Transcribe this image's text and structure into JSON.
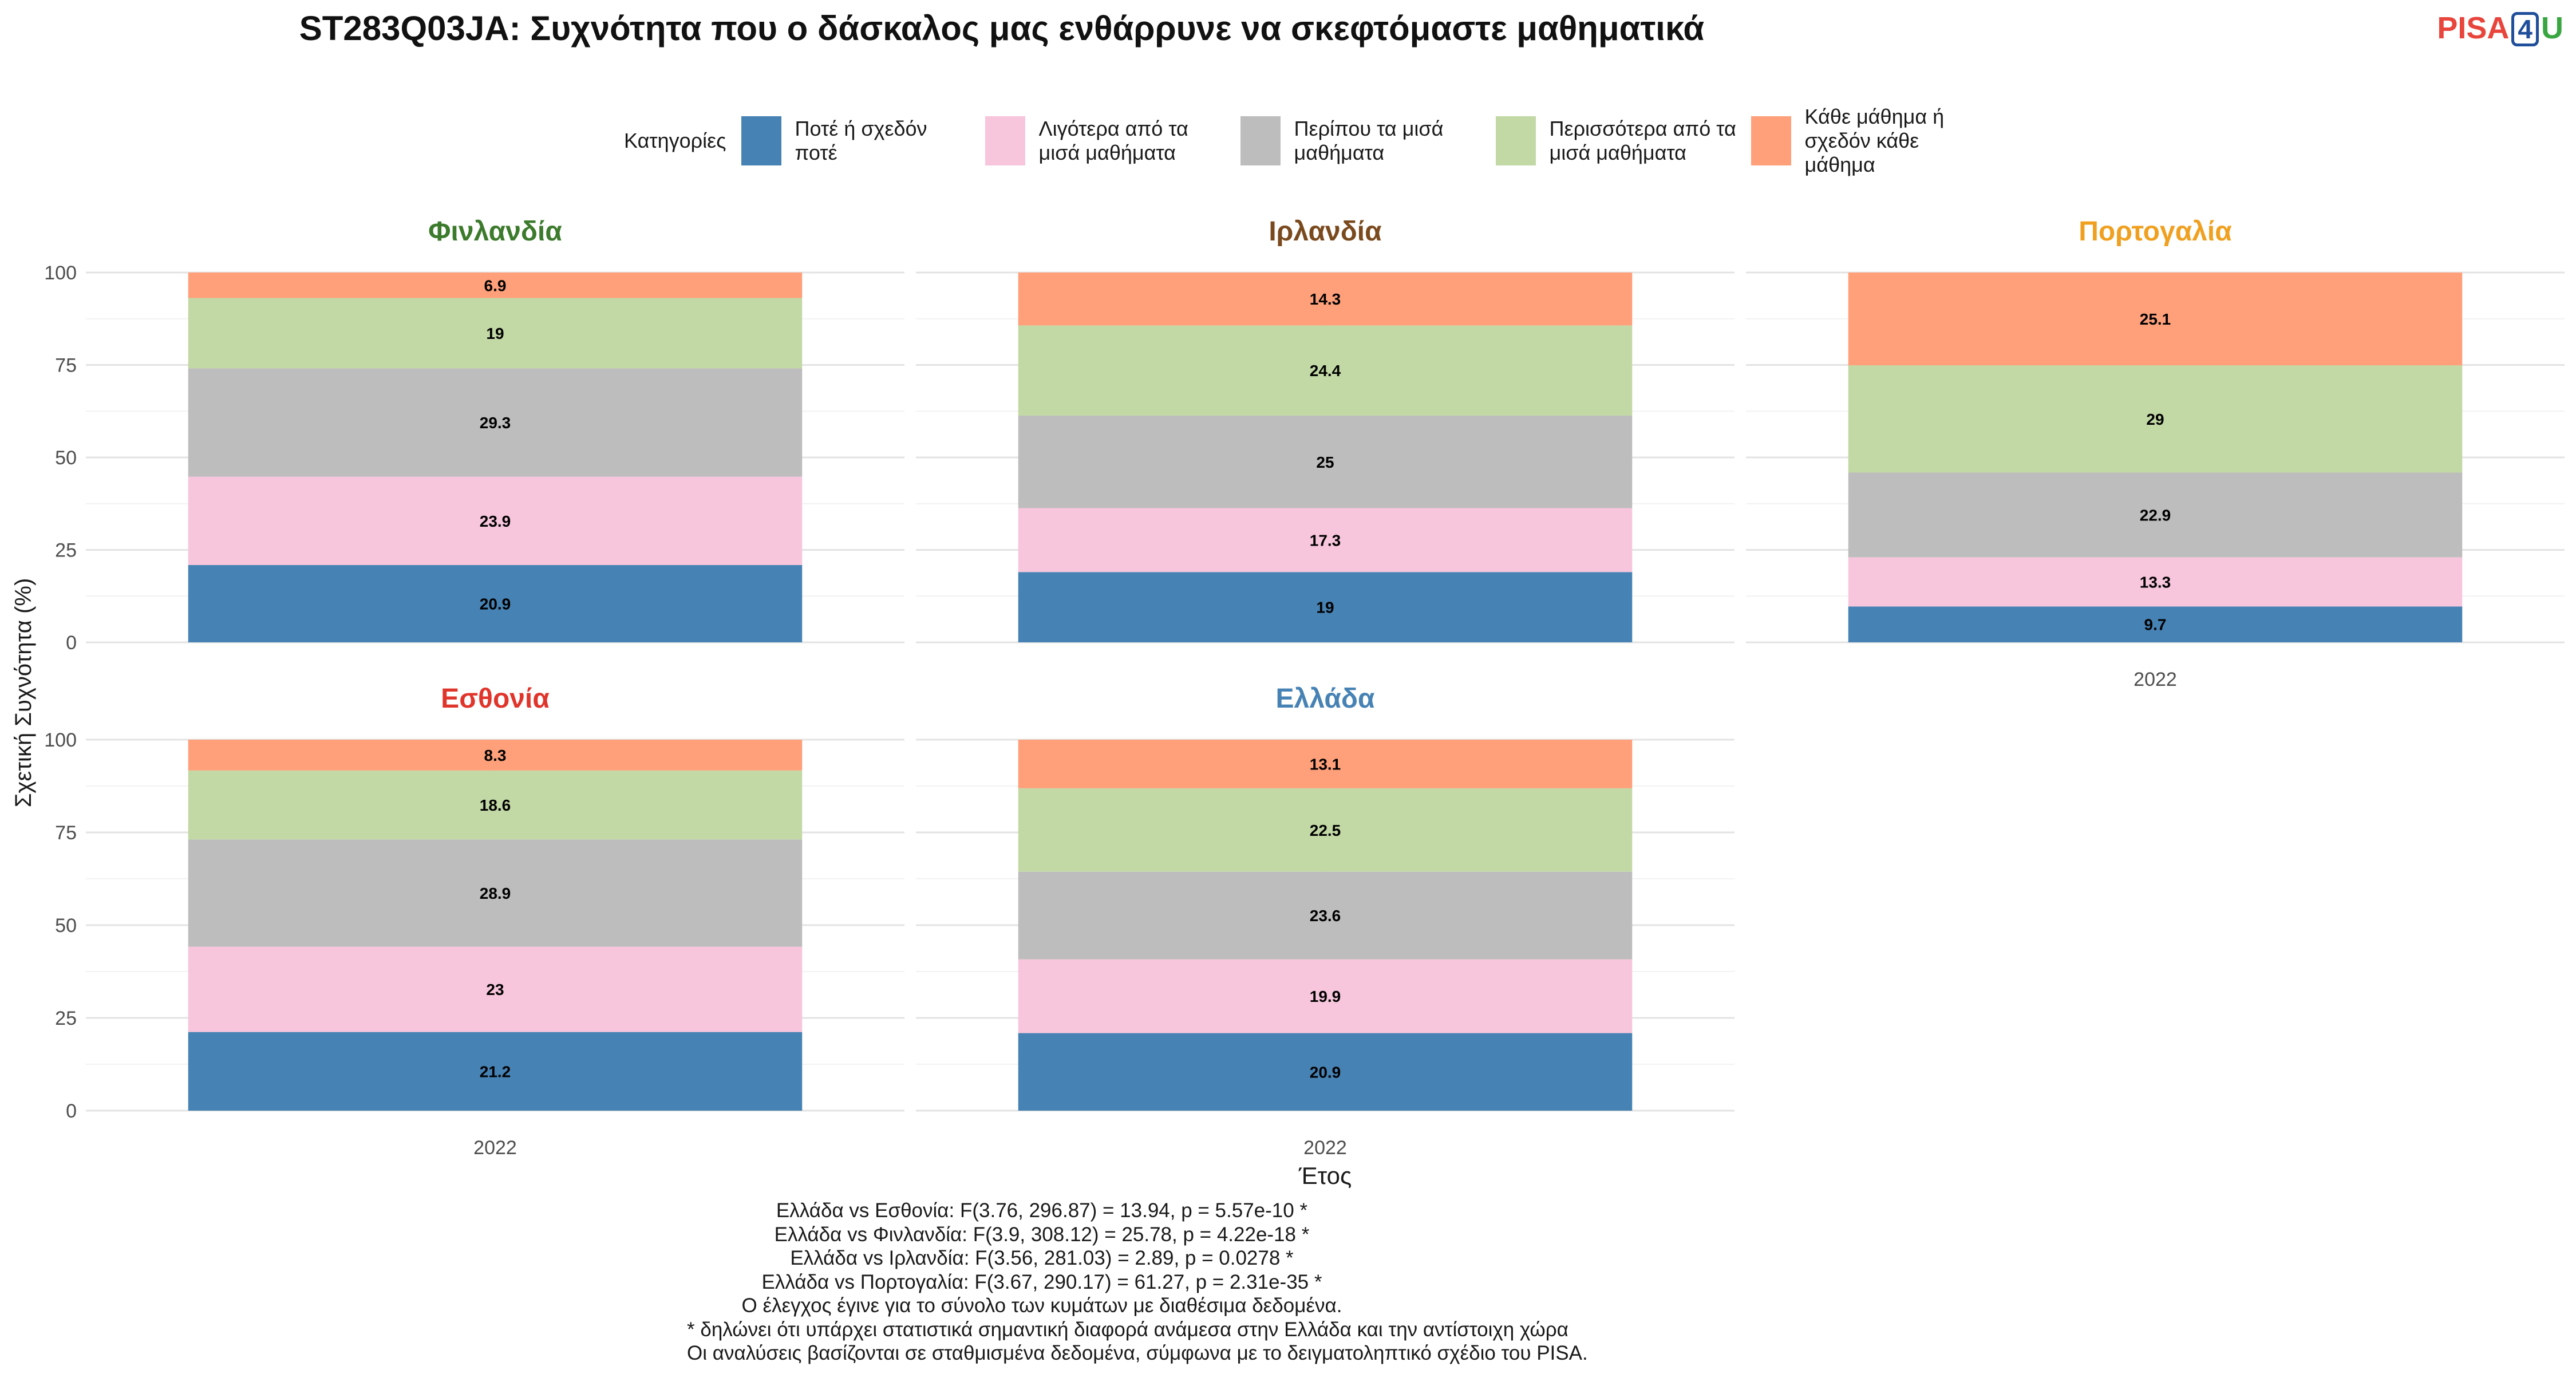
{
  "title": "ST283Q03JA: Συχνότητα που ο δάσκαλος μας ενθάρρυνε να σκεφτόμαστε μαθηματικά",
  "logo": {
    "part1": "PISA",
    "part2": "4",
    "part3": "U"
  },
  "legend": {
    "title": "Κατηγορίες",
    "items": [
      {
        "label": "Ποτέ ή σχεδόν ποτέ",
        "color": "#4682b4"
      },
      {
        "label": "Λιγότερα από τα μισά μαθήματα",
        "color": "#f7c6dc"
      },
      {
        "label": "Περίπου τα μισά μαθήματα",
        "color": "#bdbdbd"
      },
      {
        "label": "Περισσότερα από τα μισά μαθήματα",
        "color": "#c2d8a5"
      },
      {
        "label": "Κάθε μάθημα ή σχεδόν κάθε μάθημα",
        "color": "#ffa07a"
      }
    ]
  },
  "chart_data": {
    "type": "bar",
    "stacked": true,
    "xlabel": "Έτος",
    "ylabel": "Σχετική Συχνότητα (%)",
    "ylim": [
      0,
      100
    ],
    "yticks": [
      0,
      25,
      50,
      75,
      100
    ],
    "categories": [
      "2022"
    ],
    "panels": [
      {
        "name": "Φινλανδία",
        "color": "#3c7a2c",
        "values": [
          20.9,
          23.9,
          29.3,
          19,
          6.9
        ]
      },
      {
        "name": "Ιρλανδία",
        "color": "#7a4a1e",
        "values": [
          19,
          17.3,
          25,
          24.4,
          14.3
        ]
      },
      {
        "name": "Πορτογαλία",
        "color": "#f0a020",
        "values": [
          9.7,
          13.3,
          22.9,
          29,
          25.1
        ]
      },
      {
        "name": "Εσθονία",
        "color": "#e0352b",
        "values": [
          21.2,
          23,
          28.9,
          18.6,
          8.3
        ]
      },
      {
        "name": "Ελλάδα",
        "color": "#4682b4",
        "values": [
          20.9,
          19.9,
          23.6,
          22.5,
          13.1
        ]
      }
    ]
  },
  "notes": [
    "Ελλάδα vs Εσθονία: F(3.76, 296.87) = 13.94, p = 5.57e-10 *",
    "Ελλάδα vs Φινλανδία: F(3.9, 308.12) = 25.78, p = 4.22e-18 *",
    "Ελλάδα vs Ιρλανδία: F(3.56, 281.03) = 2.89, p = 0.0278 *",
    "Ελλάδα vs Πορτογαλία: F(3.67, 290.17) = 61.27, p = 2.31e-35 *",
    "Ο έλεγχος έγινε για το σύνολο των κυμάτων με διαθέσιμα δεδομένα.",
    "* δηλώνει ότι υπάρχει στατιστικά σημαντική διαφορά ανάμεσα στην Ελλάδα και την αντίστοιχη χώρα",
    "Οι αναλύσεις βασίζονται σε σταθμισμένα δεδομένα, σύμφωνα με το δειγματοληπτικό σχέδιο του PISA."
  ]
}
